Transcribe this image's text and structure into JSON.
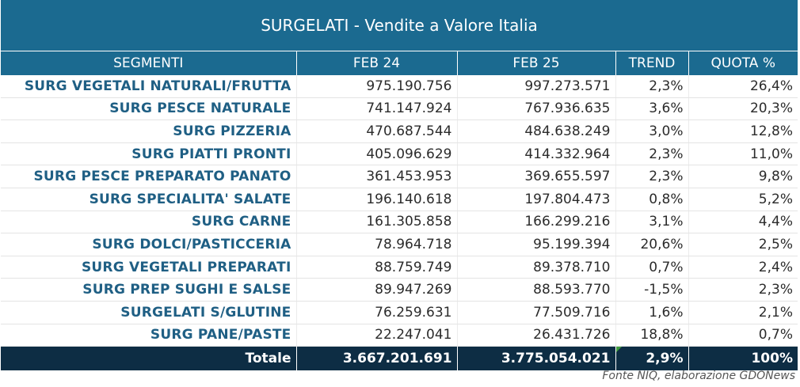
{
  "title": "SURGELATI - Vendite a Valore Italia",
  "headers": [
    "SEGMENTI",
    "FEB 24",
    "FEB 25",
    "TREND",
    "QUOTA %"
  ],
  "rows": [
    {
      "segment": "SURG VEGETALI NATURALI/FRUTTA",
      "feb24": "975.190.756",
      "feb25": "997.273.571",
      "trend": "2,3%",
      "quota": "26,4%"
    },
    {
      "segment": "SURG PESCE NATURALE",
      "feb24": "741.147.924",
      "feb25": "767.936.635",
      "trend": "3,6%",
      "quota": "20,3%"
    },
    {
      "segment": "SURG PIZZERIA",
      "feb24": "470.687.544",
      "feb25": "484.638.249",
      "trend": "3,0%",
      "quota": "12,8%"
    },
    {
      "segment": "SURG PIATTI PRONTI",
      "feb24": "405.096.629",
      "feb25": "414.332.964",
      "trend": "2,3%",
      "quota": "11,0%"
    },
    {
      "segment": "SURG PESCE PREPARATO PANATO",
      "feb24": "361.453.953",
      "feb25": "369.655.597",
      "trend": "2,3%",
      "quota": "9,8%"
    },
    {
      "segment": "SURG SPECIALITA' SALATE",
      "feb24": "196.140.618",
      "feb25": "197.804.473",
      "trend": "0,8%",
      "quota": "5,2%"
    },
    {
      "segment": "SURG CARNE",
      "feb24": "161.305.858",
      "feb25": "166.299.216",
      "trend": "3,1%",
      "quota": "4,4%"
    },
    {
      "segment": "SURG DOLCI/PASTICCERIA",
      "feb24": "78.964.718",
      "feb25": "95.199.394",
      "trend": "20,6%",
      "quota": "2,5%"
    },
    {
      "segment": "SURG VEGETALI PREPARATI",
      "feb24": "88.759.749",
      "feb25": "89.378.710",
      "trend": "0,7%",
      "quota": "2,4%"
    },
    {
      "segment": "SURG PREP SUGHI E SALSE",
      "feb24": "89.947.269",
      "feb25": "88.593.770",
      "trend": "-1,5%",
      "quota": "2,3%"
    },
    {
      "segment": "SURGELATI S/GLUTINE",
      "feb24": "76.259.631",
      "feb25": "77.509.716",
      "trend": "1,6%",
      "quota": "2,1%"
    },
    {
      "segment": "SURG PANE/PASTE",
      "feb24": "22.247.041",
      "feb25": "26.431.726",
      "trend": "18,8%",
      "quota": "0,7%"
    }
  ],
  "total": {
    "label": "Totale",
    "feb24": "3.667.201.691",
    "feb25": "3.775.054.021",
    "trend": "2,9%",
    "quota": "100%"
  },
  "source": "Fonte NIQ, elaborazione GDONews",
  "colors": {
    "header": "#1b6a90",
    "total": "#0d2d44",
    "segment_text": "#1f5f84"
  }
}
